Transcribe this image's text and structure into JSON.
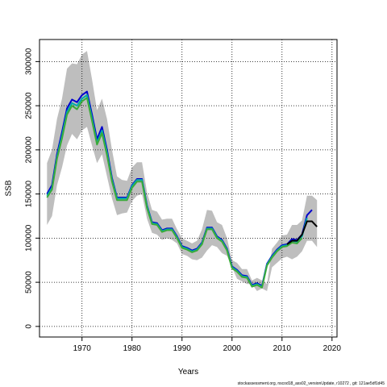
{
  "chart_data": {
    "type": "line",
    "title": "",
    "xlabel": "Years",
    "ylabel": "SSB",
    "xlim": [
      1961.5,
      2021
    ],
    "ylim": [
      -12000,
      325000
    ],
    "x_ticks": [
      1970,
      1980,
      1990,
      2000,
      2010,
      2020
    ],
    "y_ticks": [
      0,
      50000,
      100000,
      150000,
      200000,
      250000,
      300000
    ],
    "grid": true,
    "grid_style": "dotted",
    "uncertainty_band": {
      "color": "#bebebe",
      "x": [
        1963,
        1964,
        1965,
        1966,
        1967,
        1968,
        1969,
        1970,
        1971,
        1972,
        1973,
        1974,
        1975,
        1976,
        1977,
        1978,
        1979,
        1980,
        1981,
        1982,
        1983,
        1984,
        1985,
        1986,
        1987,
        1988,
        1989,
        1990,
        1991,
        1992,
        1993,
        1994,
        1995,
        1996,
        1997,
        1998,
        1999,
        2000,
        2001,
        2002,
        2003,
        2004,
        2005,
        2006,
        2007,
        2008,
        2009,
        2010,
        2011,
        2012,
        2013,
        2014,
        2015,
        2016,
        2017
      ],
      "lower": [
        115000,
        125000,
        160000,
        180000,
        205000,
        218000,
        212000,
        222000,
        226000,
        205000,
        185000,
        195000,
        170000,
        145000,
        126000,
        128000,
        129000,
        142000,
        148000,
        150000,
        122000,
        106000,
        104000,
        98000,
        100000,
        98000,
        94000,
        82000,
        80000,
        76000,
        75000,
        78000,
        86000,
        92000,
        90000,
        83000,
        80000,
        67000,
        54000,
        51000,
        48000,
        48000,
        40000,
        43000,
        40000,
        67000,
        72000,
        77000,
        79000,
        76000,
        79000,
        85000,
        97000,
        97000,
        90000
      ],
      "upper": [
        185000,
        200000,
        235000,
        258000,
        292000,
        298000,
        297000,
        308000,
        312000,
        280000,
        245000,
        258000,
        235000,
        200000,
        170000,
        166000,
        165000,
        180000,
        186000,
        186000,
        152000,
        132000,
        130000,
        121000,
        122000,
        122000,
        110000,
        100000,
        97000,
        94000,
        97000,
        110000,
        132000,
        131000,
        118000,
        115000,
        100000,
        75000,
        72000,
        65000,
        65000,
        52000,
        55000,
        52000,
        48000,
        88000,
        95000,
        103000,
        104000,
        115000,
        115000,
        120000,
        148000,
        148000,
        143000
      ]
    },
    "series": [
      {
        "color": "#0000cd",
        "x": [
          1963,
          1964,
          1965,
          1966,
          1967,
          1968,
          1969,
          1970,
          1971,
          1972,
          1973,
          1974,
          1975,
          1976,
          1977,
          1978,
          1979,
          1980,
          1981,
          1982,
          1983,
          1984,
          1985,
          1986,
          1987,
          1988,
          1989,
          1990,
          1991,
          1992,
          1993,
          1994,
          1995,
          1996,
          1997,
          1998,
          1999,
          2000,
          2001,
          2002,
          2003,
          2004,
          2005,
          2006,
          2007,
          2008,
          2009,
          2010,
          2011,
          2012,
          2013,
          2014,
          2015,
          2016
        ],
        "values": [
          150000,
          160000,
          195000,
          220000,
          247000,
          257000,
          254000,
          262000,
          266000,
          240000,
          212000,
          226000,
          200000,
          168000,
          146000,
          146000,
          146000,
          160000,
          167000,
          167000,
          137000,
          118000,
          117000,
          109000,
          111000,
          111000,
          102000,
          91000,
          89000,
          86000,
          88000,
          95000,
          112000,
          112000,
          102000,
          98000,
          88000,
          68000,
          64000,
          58000,
          57000,
          47000,
          49000,
          46000,
          71000,
          80000,
          87000,
          92000,
          93000,
          99000,
          98000,
          104000,
          126000,
          132000
        ]
      },
      {
        "color": "#00aaaa",
        "x": [
          1963,
          1964,
          1965,
          1966,
          1967,
          1968,
          1969,
          1970,
          1971,
          1972,
          1973,
          1974,
          1975,
          1976,
          1977,
          1978,
          1979,
          1980,
          1981,
          1982,
          1983,
          1984,
          1985,
          1986,
          1987,
          1988,
          1989,
          1990,
          1991,
          1992,
          1993,
          1994,
          1995,
          1996,
          1997,
          1998,
          1999,
          2000,
          2001,
          2002,
          2003,
          2004,
          2005,
          2006,
          2007,
          2008,
          2009,
          2010,
          2011,
          2012,
          2013,
          2014,
          2015
        ],
        "values": [
          148000,
          157000,
          192000,
          216000,
          243000,
          253000,
          250000,
          258000,
          262000,
          236000,
          208000,
          222000,
          197000,
          166000,
          145000,
          145000,
          145000,
          159000,
          166000,
          166000,
          136000,
          117000,
          116000,
          108000,
          110000,
          110000,
          101000,
          90000,
          88000,
          85000,
          87000,
          94000,
          111000,
          111000,
          101000,
          97000,
          87000,
          67000,
          63000,
          57000,
          56000,
          46000,
          48000,
          45000,
          70000,
          79000,
          86000,
          91000,
          92000,
          97000,
          96000,
          102000,
          123000
        ]
      },
      {
        "color": "#3aaa3a",
        "x": [
          1963,
          1964,
          1965,
          1966,
          1967,
          1968,
          1969,
          1970,
          1971,
          1972,
          1973,
          1974,
          1975,
          1976,
          1977,
          1978,
          1979,
          1980,
          1981,
          1982,
          1983,
          1984,
          1985,
          1986,
          1987,
          1988,
          1989,
          1990,
          1991,
          1992,
          1993,
          1994,
          1995,
          1996,
          1997,
          1998,
          1999,
          2000,
          2001,
          2002,
          2003,
          2004,
          2005,
          2006,
          2007,
          2008,
          2009,
          2010,
          2011,
          2012,
          2013,
          2014
        ],
        "values": [
          146000,
          155000,
          190000,
          213000,
          240000,
          250000,
          246000,
          255000,
          259000,
          233000,
          206000,
          219000,
          194000,
          164000,
          143000,
          143000,
          143000,
          157000,
          164000,
          164000,
          134000,
          116000,
          115000,
          107000,
          109000,
          109000,
          100000,
          89000,
          87000,
          84000,
          86000,
          93000,
          110000,
          110000,
          100000,
          96000,
          86000,
          66000,
          62000,
          56000,
          55000,
          45000,
          47000,
          44000,
          69000,
          78000,
          85000,
          90000,
          91000,
          95000,
          94000,
          100000
        ]
      },
      {
        "color": "#000000",
        "x": [
          2011,
          2012,
          2013,
          2014,
          2015,
          2016,
          2017
        ],
        "values": [
          93000,
          97000,
          97000,
          104000,
          119000,
          119000,
          113000
        ]
      }
    ]
  },
  "footer": {
    "text": "stockassessment.org, nscod18_ass02_versionUpdate, r10272 , git: 121ae5df1d45"
  }
}
